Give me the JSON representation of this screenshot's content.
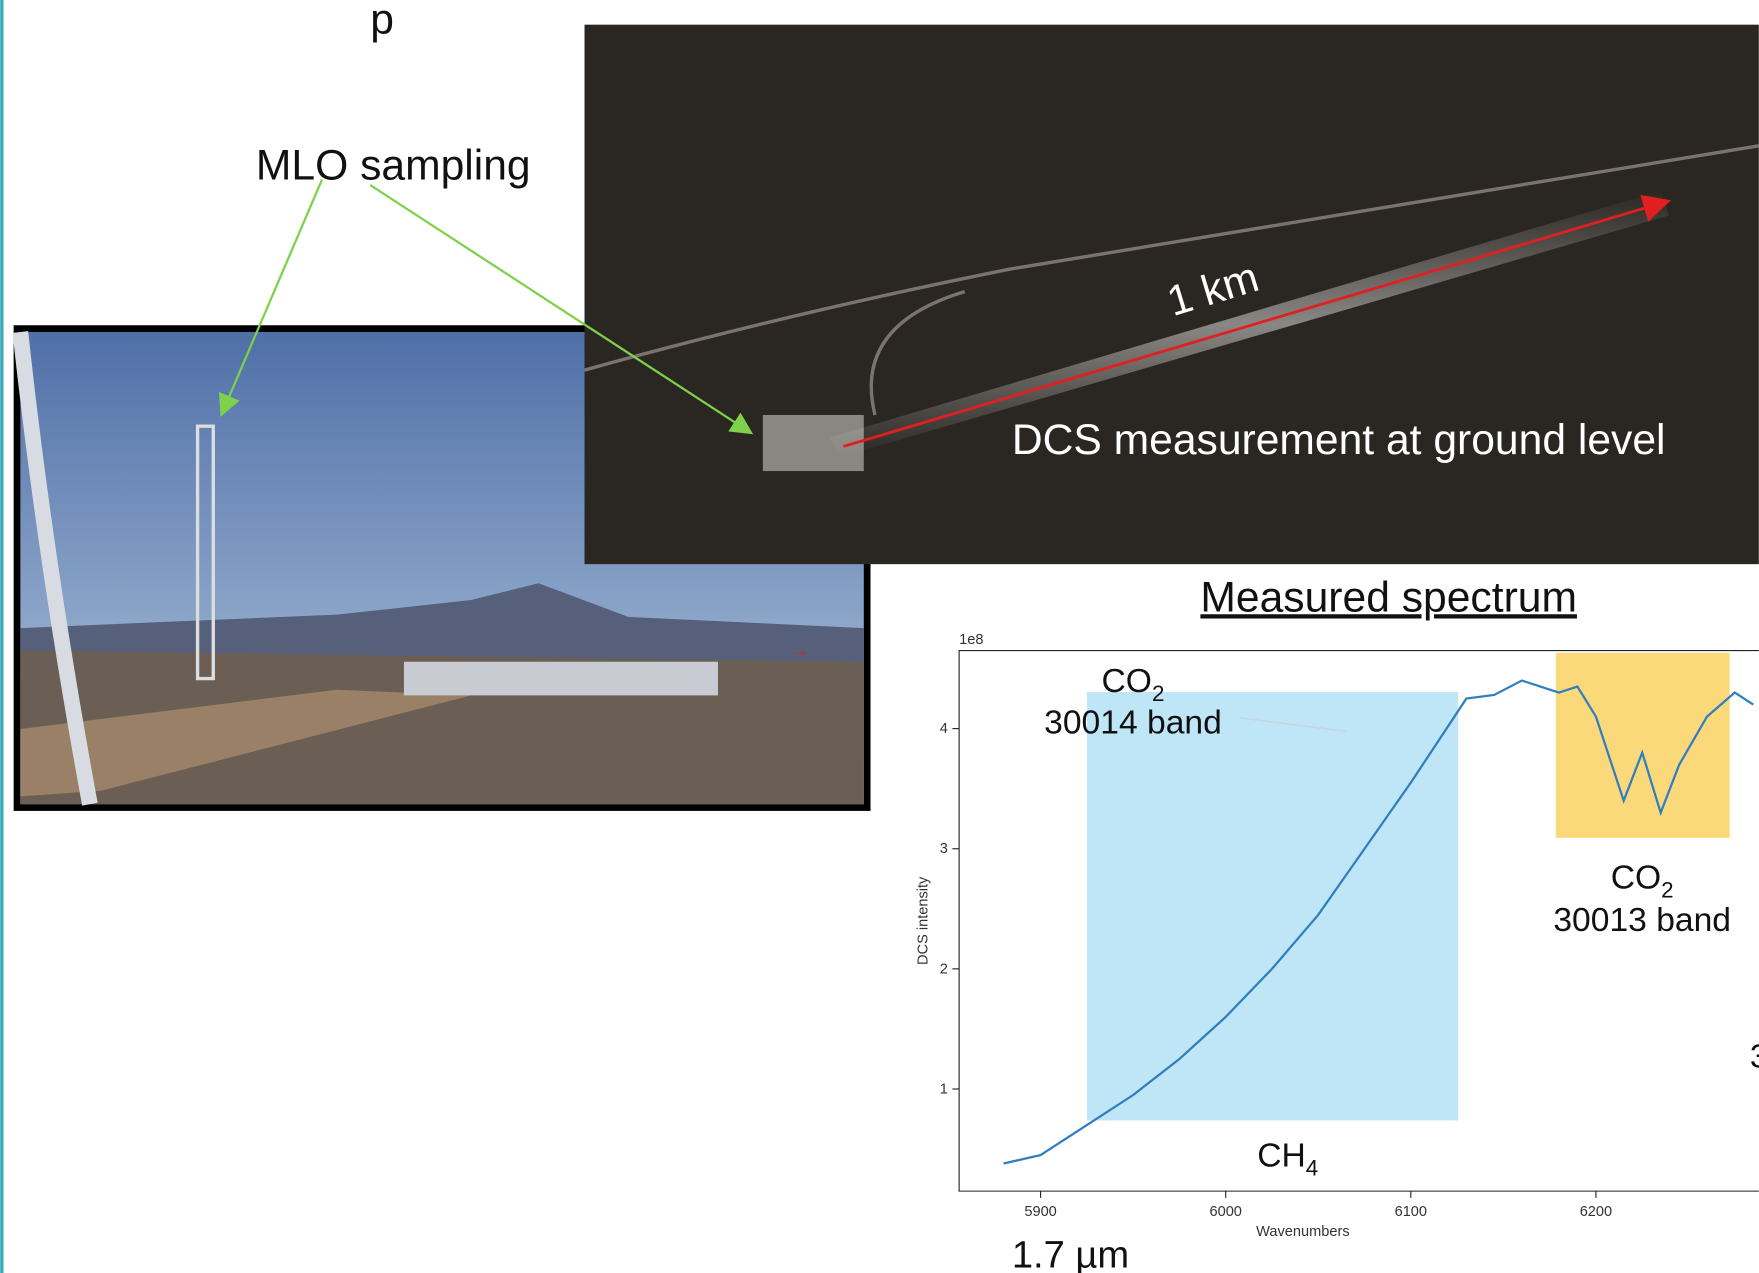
{
  "slide": {
    "title_fragment": "p",
    "mlo_label": "MLO sampling",
    "distance_label": "1 km",
    "dcs_label": "DCS measurement at ground level",
    "spectrum_title": "Measured spectrum",
    "wavelength_label": "1.7 µm",
    "cut_label": "3",
    "co2_a": {
      "main": "CO",
      "sub": "2",
      "band": "30014 band"
    },
    "co2_b": {
      "main": "CO",
      "sub": "2",
      "band": "30013 band"
    },
    "ch4": {
      "main": "CH",
      "sub": "4"
    }
  },
  "chart_data": {
    "type": "line",
    "xlabel": "Wavenumbers",
    "ylabel": "DCS intensity",
    "offset_text": "1e8",
    "x": [
      5880,
      5900,
      5925,
      5950,
      5975,
      6000,
      6025,
      6050,
      6075,
      6100,
      6115,
      6130,
      6145,
      6160,
      6170,
      6180,
      6190,
      6200,
      6215,
      6225,
      6235,
      6245,
      6260,
      6275,
      6285
    ],
    "series": [
      {
        "color": "#2f7fbf",
        "values": [
          0.38,
          0.45,
          0.7,
          0.95,
          1.25,
          1.6,
          2.0,
          2.45,
          3.0,
          3.55,
          3.9,
          4.25,
          4.28,
          4.4,
          4.35,
          4.3,
          4.35,
          4.1,
          3.4,
          3.8,
          3.3,
          3.7,
          4.1,
          4.3,
          4.2
        ]
      }
    ],
    "xlim": [
      5856,
      6288
    ],
    "ylim": [
      0.15,
      4.65
    ],
    "xticks": [
      5900,
      6000,
      6100,
      6200
    ],
    "yticks": [
      1,
      2,
      3,
      4
    ]
  }
}
